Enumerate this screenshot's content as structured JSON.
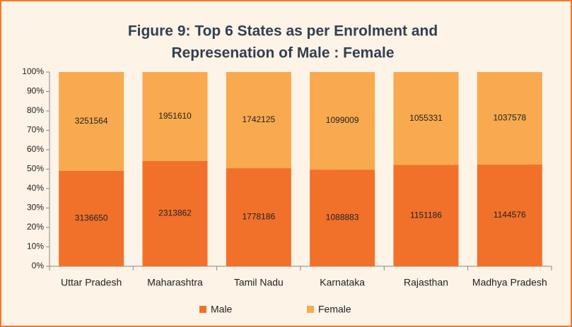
{
  "chart_data": {
    "type": "bar",
    "stacked": "percent",
    "title": [
      "Figure 9: Top 6 States as per Enrolment and",
      "Represenation of Male : Female"
    ],
    "categories": [
      "Uttar Pradesh",
      "Maharashtra",
      "Tamil Nadu",
      "Karnataka",
      "Rajasthan",
      "Madhya Pradesh"
    ],
    "series": [
      {
        "name": "Male",
        "color": "#f1712a",
        "values": [
          3136650,
          2313862,
          1778186,
          1088883,
          1151186,
          1144576
        ]
      },
      {
        "name": "Female",
        "color": "#f9a94e",
        "values": [
          3251564,
          1951610,
          1742125,
          1099009,
          1055331,
          1037578
        ]
      }
    ],
    "ylim": [
      0,
      100
    ],
    "yticks": [
      {
        "value": 0,
        "label": "0%"
      },
      {
        "value": 10,
        "label": "10%"
      },
      {
        "value": 20,
        "label": "20%"
      },
      {
        "value": 30,
        "label": "30%"
      },
      {
        "value": 40,
        "label": "40%"
      },
      {
        "value": 50,
        "label": "50%"
      },
      {
        "value": 60,
        "label": "60%"
      },
      {
        "value": 70,
        "label": "70%"
      },
      {
        "value": 80,
        "label": "80%"
      },
      {
        "value": 90,
        "label": "90%"
      },
      {
        "value": 100,
        "label": "100%"
      }
    ],
    "legend": "bottom"
  }
}
